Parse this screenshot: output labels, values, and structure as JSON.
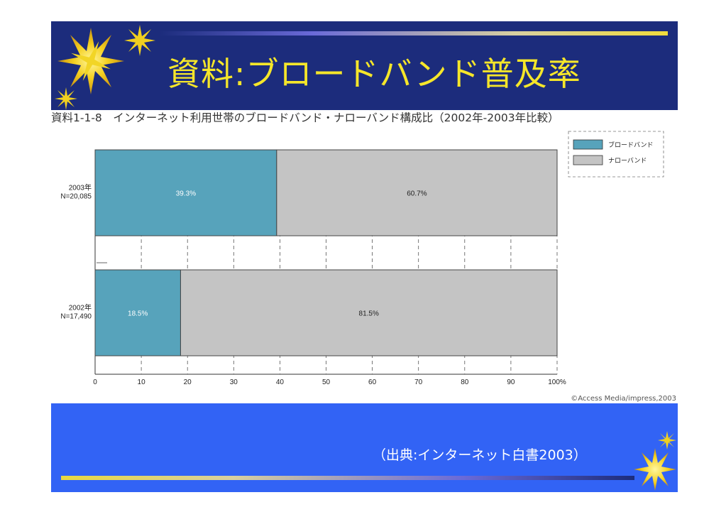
{
  "slide": {
    "title": "資料:ブロードバンド普及率",
    "chart_caption": "資料1-1-8　インターネット利用世帯のブロードバンド・ナローバンド構成比（2002年-2003年比較）",
    "copyright": "©Access Media/impress,2003",
    "source": "（出典:インターネット白書2003）"
  },
  "colors": {
    "header_bg": "#1c2c7c",
    "footer_bg": "#3263f5",
    "title_text": "#f5e62a",
    "broadband": "#57a3bb",
    "narrowband": "#c4c4c4"
  },
  "icons": [
    "starburst-icon"
  ],
  "chart_data": {
    "type": "bar",
    "orientation": "horizontal",
    "stacked": true,
    "categories": [
      {
        "year": "2003年",
        "n": "N=20,085"
      },
      {
        "year": "2002年",
        "n": "N=17,490"
      }
    ],
    "series": [
      {
        "name": "ブロードバンド",
        "values": [
          39.3,
          18.5
        ],
        "labels": [
          "39.3%",
          "18.5%"
        ]
      },
      {
        "name": "ナローバンド",
        "values": [
          60.7,
          81.5
        ],
        "labels": [
          "60.7%",
          "81.5%"
        ]
      }
    ],
    "xlim": [
      0,
      100
    ],
    "xticks": [
      "0",
      "10",
      "20",
      "30",
      "40",
      "50",
      "60",
      "70",
      "80",
      "90",
      "100%"
    ],
    "grid": true,
    "legend_position": "top-right"
  }
}
